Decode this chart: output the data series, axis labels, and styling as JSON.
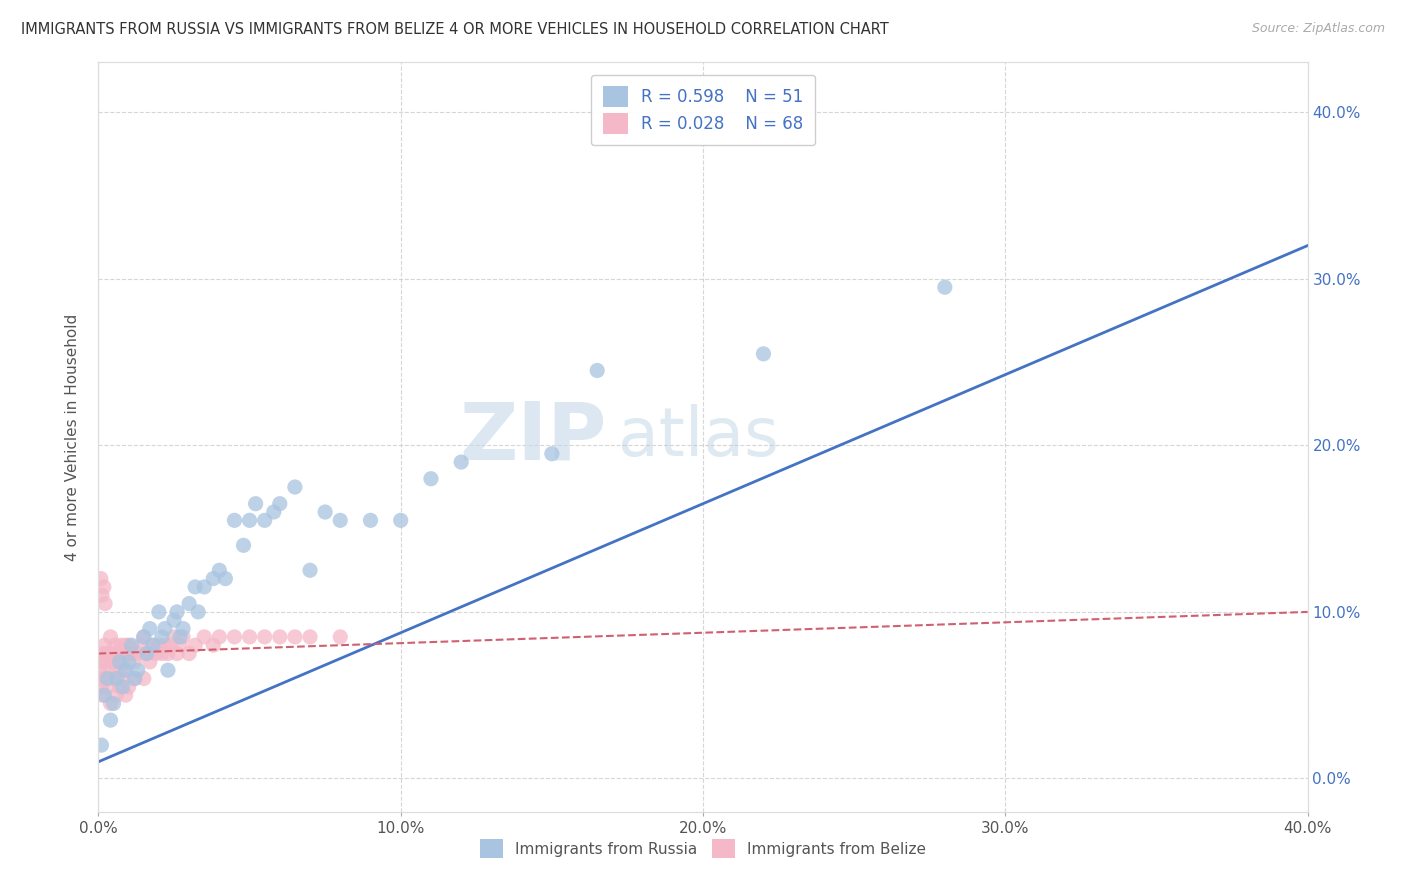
{
  "title": "IMMIGRANTS FROM RUSSIA VS IMMIGRANTS FROM BELIZE 4 OR MORE VEHICLES IN HOUSEHOLD CORRELATION CHART",
  "source": "Source: ZipAtlas.com",
  "ylabel": "4 or more Vehicles in Household",
  "xlim": [
    0.0,
    0.4
  ],
  "ylim": [
    -0.02,
    0.43
  ],
  "xticks": [
    0.0,
    0.1,
    0.2,
    0.3,
    0.4
  ],
  "yticks": [
    0.0,
    0.1,
    0.2,
    0.3,
    0.4
  ],
  "right_ytick_labels": [
    "0.0%",
    "10.0%",
    "20.0%",
    "30.0%",
    "40.0%"
  ],
  "russia_R": 0.598,
  "russia_N": 51,
  "belize_R": 0.028,
  "belize_N": 68,
  "russia_color": "#a8c4e0",
  "belize_color": "#f4b8c8",
  "russia_line_color": "#4472c4",
  "belize_line_color": "#d06070",
  "background_color": "#ffffff",
  "grid_color": "#cccccc",
  "russia_scatter_x": [
    0.001,
    0.002,
    0.003,
    0.004,
    0.005,
    0.006,
    0.007,
    0.008,
    0.009,
    0.01,
    0.011,
    0.012,
    0.013,
    0.015,
    0.016,
    0.017,
    0.018,
    0.02,
    0.021,
    0.022,
    0.023,
    0.025,
    0.026,
    0.027,
    0.028,
    0.03,
    0.032,
    0.033,
    0.035,
    0.038,
    0.04,
    0.042,
    0.045,
    0.048,
    0.05,
    0.052,
    0.055,
    0.058,
    0.06,
    0.065,
    0.07,
    0.075,
    0.08,
    0.09,
    0.1,
    0.11,
    0.12,
    0.15,
    0.165,
    0.22,
    0.28
  ],
  "russia_scatter_y": [
    0.02,
    0.05,
    0.06,
    0.035,
    0.045,
    0.06,
    0.07,
    0.055,
    0.065,
    0.07,
    0.08,
    0.06,
    0.065,
    0.085,
    0.075,
    0.09,
    0.08,
    0.1,
    0.085,
    0.09,
    0.065,
    0.095,
    0.1,
    0.085,
    0.09,
    0.105,
    0.115,
    0.1,
    0.115,
    0.12,
    0.125,
    0.12,
    0.155,
    0.14,
    0.155,
    0.165,
    0.155,
    0.16,
    0.165,
    0.175,
    0.125,
    0.16,
    0.155,
    0.155,
    0.155,
    0.18,
    0.19,
    0.195,
    0.245,
    0.255,
    0.295
  ],
  "belize_scatter_x": [
    0.0005,
    0.001,
    0.0015,
    0.002,
    0.0025,
    0.003,
    0.0035,
    0.004,
    0.0045,
    0.005,
    0.0055,
    0.006,
    0.0065,
    0.007,
    0.0075,
    0.008,
    0.0085,
    0.009,
    0.0095,
    0.01,
    0.011,
    0.012,
    0.013,
    0.014,
    0.015,
    0.016,
    0.017,
    0.018,
    0.019,
    0.02,
    0.021,
    0.022,
    0.023,
    0.024,
    0.025,
    0.026,
    0.027,
    0.028,
    0.03,
    0.032,
    0.035,
    0.038,
    0.04,
    0.045,
    0.05,
    0.055,
    0.06,
    0.065,
    0.07,
    0.08,
    0.0005,
    0.001,
    0.0015,
    0.002,
    0.003,
    0.004,
    0.005,
    0.006,
    0.007,
    0.008,
    0.009,
    0.01,
    0.012,
    0.015,
    0.0008,
    0.0012,
    0.0018,
    0.0022
  ],
  "belize_scatter_y": [
    0.065,
    0.07,
    0.075,
    0.08,
    0.07,
    0.075,
    0.065,
    0.085,
    0.07,
    0.075,
    0.08,
    0.065,
    0.075,
    0.07,
    0.08,
    0.075,
    0.065,
    0.08,
    0.075,
    0.08,
    0.075,
    0.07,
    0.075,
    0.08,
    0.085,
    0.075,
    0.07,
    0.08,
    0.075,
    0.08,
    0.075,
    0.08,
    0.075,
    0.08,
    0.085,
    0.075,
    0.08,
    0.085,
    0.075,
    0.08,
    0.085,
    0.08,
    0.085,
    0.085,
    0.085,
    0.085,
    0.085,
    0.085,
    0.085,
    0.085,
    0.06,
    0.055,
    0.05,
    0.06,
    0.055,
    0.045,
    0.06,
    0.05,
    0.055,
    0.06,
    0.05,
    0.055,
    0.06,
    0.06,
    0.12,
    0.11,
    0.115,
    0.105
  ],
  "russia_line_x": [
    0.0,
    0.4
  ],
  "russia_line_y": [
    0.01,
    0.32
  ],
  "belize_line_x": [
    0.0,
    0.4
  ],
  "belize_line_y": [
    0.075,
    0.1
  ]
}
